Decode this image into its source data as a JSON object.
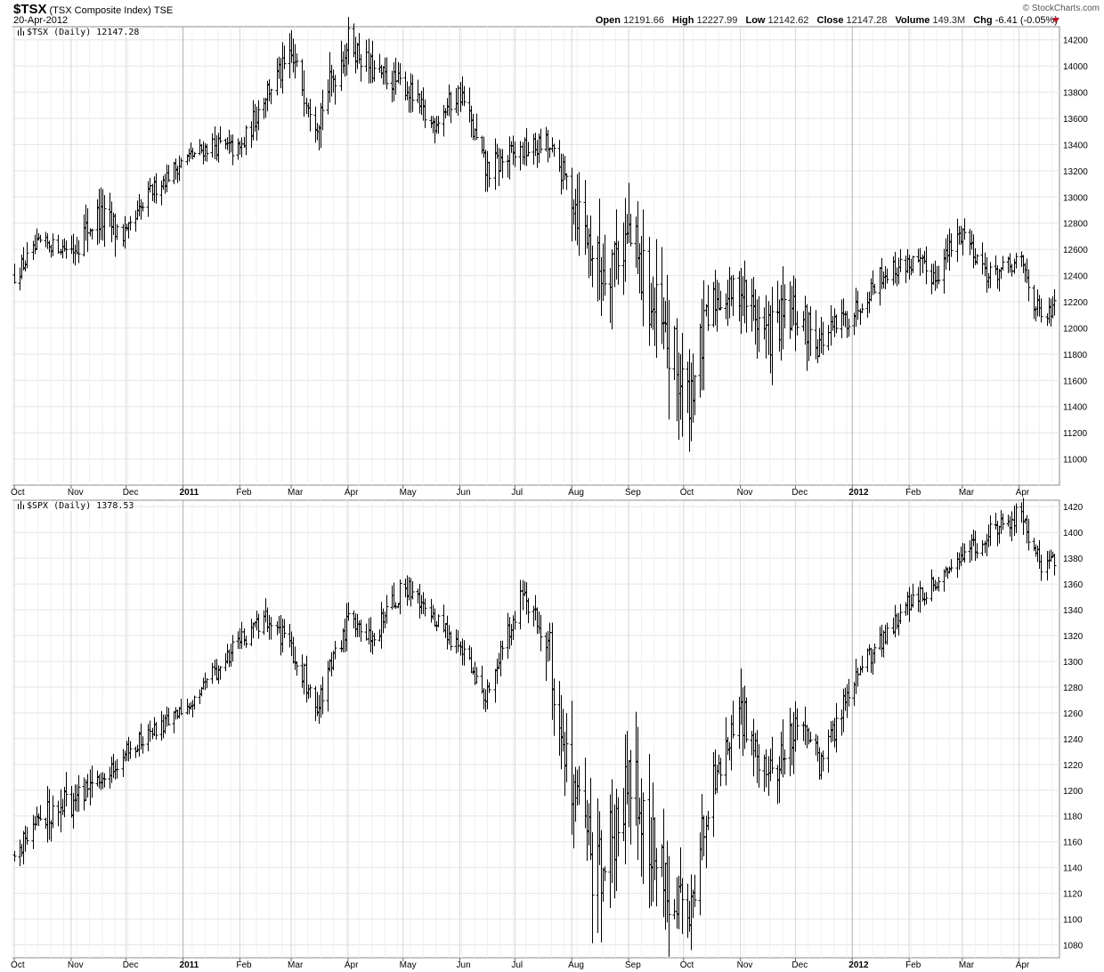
{
  "header": {
    "symbol": "$TSX",
    "name": "(TSX Composite Index)",
    "exchange": "TSE",
    "date": "20-Apr-2012",
    "brand": "© StockCharts.com",
    "open_label": "Open",
    "open": "12191.66",
    "high_label": "High",
    "high": "12227.99",
    "low_label": "Low",
    "low": "12142.62",
    "close_label": "Close",
    "close": "12147.28",
    "volume_label": "Volume",
    "volume": "149.3M",
    "chg_label": "Chg",
    "chg": "-6.41 (-0.05%)",
    "chg_direction_icon": "down-triangle-icon",
    "chg_color": "#c0102a"
  },
  "chart_data": [
    {
      "type": "ohlc",
      "legend": "$TSX (Daily) 12147.28",
      "ylim": [
        10800,
        14300
      ],
      "yticks": [
        11000,
        11200,
        11400,
        11600,
        11800,
        12000,
        12200,
        12400,
        12600,
        12800,
        13000,
        13200,
        13400,
        13600,
        13800,
        14000,
        14200
      ],
      "months": [
        "Oct",
        "Nov",
        "Dec",
        "2011",
        "Feb",
        "Mar",
        "Apr",
        "May",
        "Jun",
        "Jul",
        "Aug",
        "Sep",
        "Oct",
        "Nov",
        "Dec",
        "2012",
        "Feb",
        "Mar",
        "Apr"
      ],
      "bold_months": [
        "2011",
        "2012"
      ],
      "x": [
        "2010-10-01",
        "2010-10-15",
        "2010-11-01",
        "2010-11-15",
        "2010-12-01",
        "2010-12-15",
        "2011-01-03",
        "2011-01-17",
        "2011-02-01",
        "2011-02-15",
        "2011-03-01",
        "2011-03-15",
        "2011-04-01",
        "2011-04-15",
        "2011-05-02",
        "2011-05-16",
        "2011-06-01",
        "2011-06-15",
        "2011-07-04",
        "2011-07-18",
        "2011-08-01",
        "2011-08-15",
        "2011-09-01",
        "2011-09-15",
        "2011-10-03",
        "2011-10-17",
        "2011-11-01",
        "2011-11-15",
        "2011-12-01",
        "2011-12-15",
        "2012-01-03",
        "2012-01-16",
        "2012-02-01",
        "2012-02-15",
        "2012-03-01",
        "2012-03-15",
        "2012-04-02",
        "2012-04-13",
        "2012-04-20"
      ],
      "close": [
        12400,
        12650,
        12600,
        12850,
        12700,
        13050,
        13300,
        13400,
        13350,
        13800,
        14050,
        13600,
        14200,
        13950,
        13850,
        13550,
        13800,
        13200,
        13350,
        13400,
        13050,
        12450,
        12700,
        12100,
        11450,
        12200,
        12300,
        11950,
        12100,
        11900,
        12150,
        12400,
        12500,
        12400,
        12750,
        12400,
        12500,
        12050,
        12147.28
      ],
      "high": [
        12550,
        12720,
        12700,
        13100,
        12850,
        13200,
        13400,
        13500,
        13500,
        13950,
        14300,
        13700,
        14300,
        14100,
        13950,
        13650,
        13900,
        13350,
        13450,
        13500,
        13150,
        12700,
        12800,
        12450,
        11900,
        12350,
        12500,
        12250,
        12250,
        12050,
        12250,
        12500,
        12600,
        12600,
        12800,
        12550,
        12600,
        12300,
        12227.99
      ],
      "low": [
        12250,
        12550,
        12500,
        12500,
        12550,
        12950,
        13200,
        13250,
        13200,
        13600,
        13900,
        13250,
        13900,
        13800,
        13650,
        13300,
        13600,
        12850,
        13150,
        13200,
        12750,
        11600,
        12000,
        11300,
        10850,
        11900,
        12000,
        11500,
        11500,
        11600,
        11950,
        12250,
        12300,
        12250,
        12500,
        12300,
        12350,
        11900,
        12142.62
      ]
    },
    {
      "type": "ohlc",
      "legend": "$SPX (Daily) 1378.53",
      "ylim": [
        1070,
        1425
      ],
      "yticks": [
        1080,
        1100,
        1120,
        1140,
        1160,
        1180,
        1200,
        1220,
        1240,
        1260,
        1280,
        1300,
        1320,
        1340,
        1360,
        1380,
        1400,
        1420
      ],
      "months": [
        "Oct",
        "Nov",
        "Dec",
        "2011",
        "Feb",
        "Mar",
        "Apr",
        "May",
        "Jun",
        "Jul",
        "Aug",
        "Sep",
        "Oct",
        "Nov",
        "Dec",
        "2012",
        "Feb",
        "Mar",
        "Apr"
      ],
      "bold_months": [
        "2011",
        "2012"
      ],
      "x": [
        "2010-10-01",
        "2010-10-15",
        "2010-11-01",
        "2010-11-15",
        "2010-12-01",
        "2010-12-15",
        "2011-01-03",
        "2011-01-17",
        "2011-02-01",
        "2011-02-15",
        "2011-03-01",
        "2011-03-15",
        "2011-04-01",
        "2011-04-15",
        "2011-05-02",
        "2011-05-16",
        "2011-06-01",
        "2011-06-15",
        "2011-07-04",
        "2011-07-18",
        "2011-08-01",
        "2011-08-15",
        "2011-09-01",
        "2011-09-15",
        "2011-10-03",
        "2011-10-17",
        "2011-11-01",
        "2011-11-15",
        "2011-12-01",
        "2011-12-15",
        "2012-01-03",
        "2012-01-16",
        "2012-02-01",
        "2012-02-15",
        "2012-03-01",
        "2012-03-15",
        "2012-04-02",
        "2012-04-13",
        "2012-04-20"
      ],
      "close": [
        1150,
        1180,
        1190,
        1205,
        1230,
        1245,
        1265,
        1290,
        1315,
        1335,
        1310,
        1265,
        1330,
        1320,
        1360,
        1335,
        1310,
        1270,
        1350,
        1320,
        1200,
        1130,
        1210,
        1150,
        1100,
        1210,
        1260,
        1200,
        1250,
        1220,
        1290,
        1315,
        1345,
        1360,
        1380,
        1400,
        1415,
        1375,
        1378.53
      ],
      "high": [
        1160,
        1190,
        1225,
        1215,
        1240,
        1255,
        1275,
        1300,
        1325,
        1345,
        1330,
        1285,
        1340,
        1335,
        1370,
        1350,
        1320,
        1290,
        1360,
        1345,
        1290,
        1205,
        1230,
        1220,
        1160,
        1230,
        1290,
        1270,
        1265,
        1240,
        1300,
        1325,
        1355,
        1370,
        1390,
        1415,
        1425,
        1390,
        1390.0
      ],
      "low": [
        1130,
        1160,
        1170,
        1195,
        1215,
        1235,
        1255,
        1275,
        1300,
        1320,
        1295,
        1250,
        1310,
        1305,
        1340,
        1320,
        1300,
        1260,
        1330,
        1310,
        1180,
        1100,
        1120,
        1110,
        1075,
        1180,
        1240,
        1160,
        1220,
        1200,
        1270,
        1300,
        1330,
        1340,
        1370,
        1380,
        1395,
        1360,
        1375.0
      ]
    }
  ]
}
